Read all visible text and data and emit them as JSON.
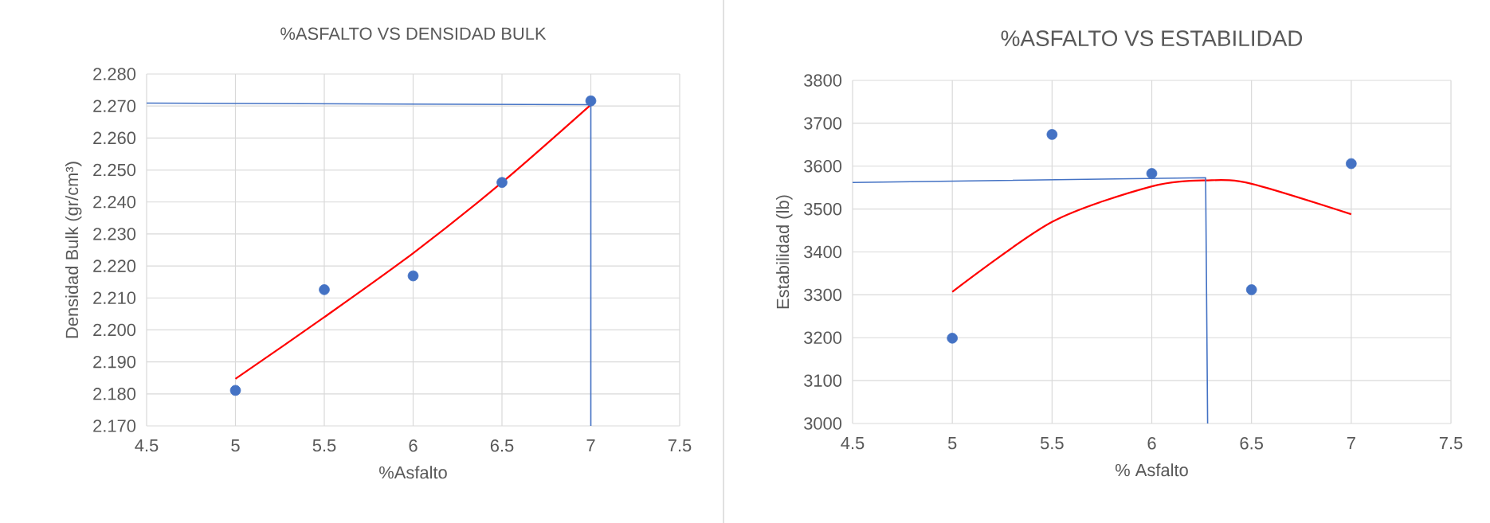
{
  "chart_data": [
    {
      "type": "scatter",
      "title": "%ASFALTO VS DENSIDAD BULK",
      "xlabel": "%Asfalto",
      "ylabel": "Densidad Bulk (gr/cm³)",
      "x": [
        5,
        5.5,
        6,
        6.5,
        7
      ],
      "grid": true,
      "series": [
        {
          "marker": "circle",
          "color": "#4472c4",
          "values": [
            2.1811,
            2.2126,
            2.2169,
            2.2461,
            2.2716
          ]
        },
        {
          "type": "line",
          "color": "#ff0000",
          "x": [
            5,
            5.5,
            6,
            6.5,
            7
          ],
          "values": [
            2.1847,
            2.204,
            2.224,
            2.2461,
            2.2704
          ]
        },
        {
          "type": "line",
          "color": "#4472c4",
          "x": [
            4.5,
            7,
            7
          ],
          "values": [
            2.2709,
            2.2704,
            2.17
          ]
        }
      ],
      "xlim": [
        4.5,
        7.5
      ],
      "ylim": [
        2.17,
        2.28
      ],
      "xticks": [
        4.5,
        5,
        5.5,
        6,
        6.5,
        7,
        7.5
      ],
      "yticks": [
        {
          "value": 2.17,
          "label": "2.170"
        },
        {
          "value": 2.18,
          "label": "2.180"
        },
        {
          "value": 2.19,
          "label": "2.190"
        },
        {
          "value": 2.2,
          "label": "2.200"
        },
        {
          "value": 2.21,
          "label": "2.210"
        },
        {
          "value": 2.22,
          "label": "2.220"
        },
        {
          "value": 2.23,
          "label": "2.230"
        },
        {
          "value": 2.24,
          "label": "2.240"
        },
        {
          "value": 2.25,
          "label": "2.250"
        },
        {
          "value": 2.26,
          "label": "2.260"
        },
        {
          "value": 2.27,
          "label": "2.270"
        },
        {
          "value": 2.28,
          "label": "2.280"
        }
      ]
    },
    {
      "type": "scatter",
      "title": "%ASFALTO VS ESTABILIDAD",
      "xlabel": "% Asfalto",
      "ylabel": "Estabilidad (lb)",
      "x": [
        5,
        5.5,
        6,
        6.5,
        7
      ],
      "grid": true,
      "series": [
        {
          "marker": "circle",
          "color": "#4472c4",
          "values": [
            3199,
            3674,
            3583,
            3312,
            3606
          ]
        },
        {
          "type": "line",
          "color": "#ff0000",
          "x": [
            5,
            5.5,
            6,
            6.28,
            6.5,
            7
          ],
          "values": [
            3307,
            3470,
            3553,
            3567,
            3559,
            3488
          ]
        },
        {
          "type": "line",
          "color": "#4472c4",
          "x": [
            4.5,
            6.27,
            6.28
          ],
          "values": [
            3562,
            3573,
            3000
          ]
        }
      ],
      "xlim": [
        4.5,
        7.5
      ],
      "ylim": [
        3000,
        3800
      ],
      "xticks": [
        4.5,
        5,
        5.5,
        6,
        6.5,
        7,
        7.5
      ],
      "yticks": [
        3000,
        3100,
        3200,
        3300,
        3400,
        3500,
        3600,
        3700,
        3800
      ]
    }
  ]
}
